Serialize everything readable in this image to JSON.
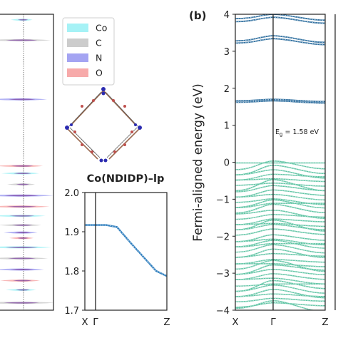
{
  "chart_data": [
    {
      "panel_id": "pdos",
      "type": "area",
      "legend": {
        "placement": "top-right",
        "entries": [
          {
            "name": "Co",
            "color": "#a6f2f6"
          },
          {
            "name": "C",
            "color": "#cccccc"
          },
          {
            "name": "N",
            "color": "#a4a4f2"
          },
          {
            "name": "O",
            "color": "#f7aaaa"
          }
        ]
      },
      "peaks_energy_eV": [
        3.85,
        3.3,
        1.7,
        -0.1,
        -0.3,
        -0.6,
        -0.9,
        -1.2,
        -1.45,
        -1.7,
        -1.9,
        -2.05,
        -2.3,
        -2.6,
        -2.9,
        -3.2,
        -3.45,
        -3.8
      ]
    },
    {
      "panel_id": "zoom",
      "type": "line",
      "title": "Co(NDIDP)–lp",
      "ylim": [
        1.7,
        2.0
      ],
      "yticks": [
        "2.0",
        "1.9",
        "1.8",
        "1.7"
      ],
      "kpath": [
        "X",
        "Γ",
        "Z"
      ],
      "band": {
        "k": [
          0,
          0.15,
          0.3,
          0.5,
          0.7,
          0.85,
          1.0
        ],
        "E": [
          1.917,
          1.917,
          1.912,
          1.87,
          1.83,
          1.8,
          1.787
        ]
      }
    },
    {
      "panel_id": "bands",
      "type": "line",
      "label": "(b)",
      "ylabel": "Fermi-aligned energy (eV)",
      "ylim": [
        -4,
        4
      ],
      "yticks": [
        "4",
        "3",
        "2",
        "1",
        "0",
        "−1",
        "−2",
        "−3",
        "−4"
      ],
      "kpath": [
        "X",
        "Γ",
        "Z"
      ],
      "annotation": {
        "text": "E",
        "sub": "g",
        "value": " = 1.58 eV"
      },
      "conduction_bands": [
        {
          "X": 3.88,
          "G": 4.0,
          "Z": 3.84
        },
        {
          "X": 3.8,
          "G": 3.92,
          "Z": 3.76
        },
        {
          "X": 3.28,
          "G": 3.42,
          "Z": 3.24
        },
        {
          "X": 3.22,
          "G": 3.34,
          "Z": 3.18
        },
        {
          "X": 1.66,
          "G": 1.7,
          "Z": 1.64
        },
        {
          "X": 1.62,
          "G": 1.66,
          "Z": 1.6
        }
      ]
    }
  ]
}
